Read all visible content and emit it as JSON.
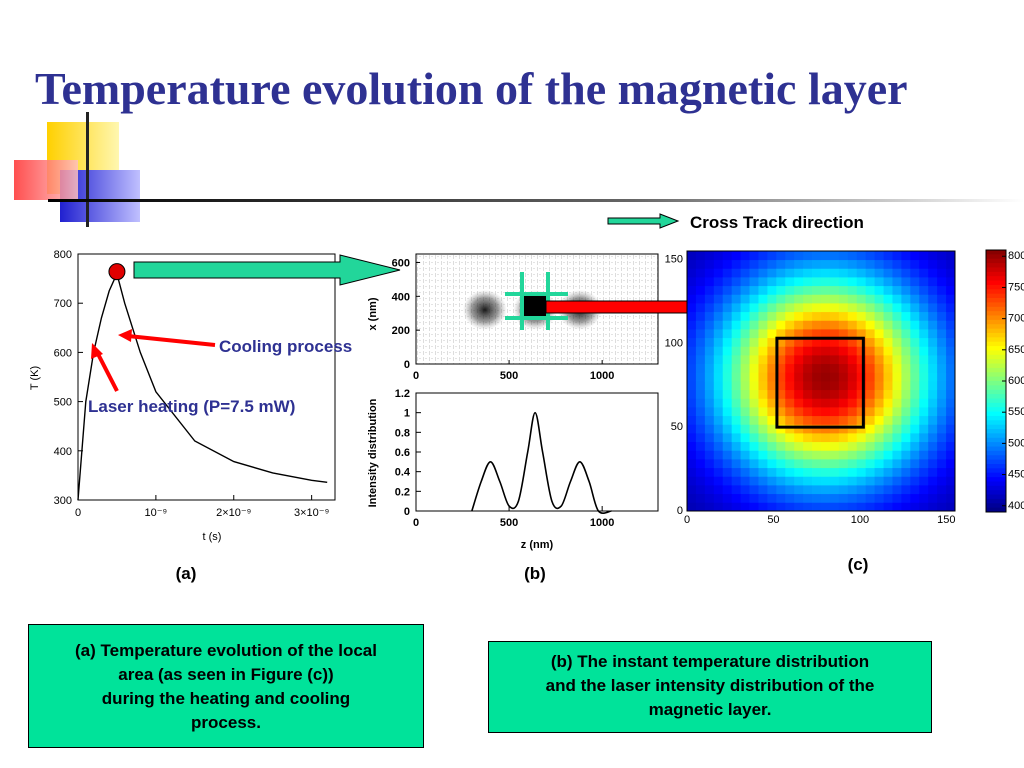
{
  "slide": {
    "title": "Temperature evolution of the magnetic layer",
    "cross_track_label": "Cross Track direction",
    "annotations": {
      "cooling": "Cooling process",
      "heating": "Laser heating (P=7.5 mW)"
    },
    "captions": {
      "a": "(a)",
      "b": "(b)",
      "c": "(c)"
    },
    "box_a": [
      "(a) Temperature evolution of the local",
      "area (as seen in Figure (c))",
      "during the heating and cooling",
      "process."
    ],
    "box_b": [
      "(b) The instant temperature distribution",
      "and the laser intensity distribution of the",
      "magnetic layer."
    ]
  },
  "colors": {
    "title": "#2e3192",
    "annotation": "#2e3192",
    "box_fill": "#00e39a",
    "arrow_green": "#22d69a",
    "arrow_red": "#ff0000"
  },
  "chart_data": [
    {
      "type": "line",
      "panel": "a",
      "xlabel": "t (s)",
      "ylabel": "T (K)",
      "xticks": [
        "0",
        "10⁻⁹",
        "2×10⁻⁹",
        "3×10⁻⁹"
      ],
      "yticks": [
        "300",
        "400",
        "500",
        "600",
        "700",
        "800"
      ],
      "xlim": [
        0,
        3.3e-09
      ],
      "ylim": [
        300,
        800
      ],
      "peak": {
        "t": 5e-10,
        "T": 760
      },
      "x": [
        0,
        1e-10,
        2e-10,
        3e-10,
        4e-10,
        5e-10,
        6e-10,
        8e-10,
        1e-09,
        1.5e-09,
        2e-09,
        2.5e-09,
        3e-09,
        3.2e-09
      ],
      "y": [
        300,
        500,
        600,
        670,
        725,
        760,
        700,
        600,
        520,
        420,
        378,
        355,
        340,
        336
      ]
    },
    {
      "type": "line",
      "panel": "b",
      "xlabel": "z (nm)",
      "ylabel": "Intensity distribution",
      "xticks": [
        "0",
        "500",
        "1000"
      ],
      "yticks": [
        "0",
        "0.2",
        "0.4",
        "0.6",
        "0.8",
        "1",
        "1.2"
      ],
      "xlim": [
        0,
        1300
      ],
      "ylim": [
        0,
        1.2
      ],
      "x": [
        300,
        350,
        400,
        450,
        500,
        550,
        600,
        640,
        680,
        730,
        780,
        830,
        880,
        930,
        980,
        1050
      ],
      "y": [
        0,
        0.3,
        0.5,
        0.3,
        0.05,
        0.1,
        0.6,
        1.0,
        0.6,
        0.1,
        0.05,
        0.3,
        0.5,
        0.3,
        0,
        0
      ]
    },
    {
      "type": "heatmap",
      "panel": "b-top",
      "ylabel": "x (nm)",
      "xticks": [
        "0",
        "500",
        "1000"
      ],
      "yticks": [
        "0",
        "200",
        "400",
        "600"
      ],
      "xlim": [
        0,
        1300
      ],
      "ylim": [
        0,
        650
      ],
      "spots_z": [
        370,
        640,
        880
      ],
      "spot_x": 320
    },
    {
      "type": "heatmap",
      "panel": "c",
      "xticks": [
        "0",
        "50",
        "100",
        "150"
      ],
      "yticks": [
        "0",
        "50",
        "100",
        "150"
      ],
      "xlim": [
        0,
        155
      ],
      "ylim": [
        0,
        155
      ],
      "center": [
        80,
        80
      ],
      "peak_value": 800,
      "min_value": 400,
      "colorbar_ticks": [
        "800",
        "750",
        "700",
        "650",
        "600",
        "550",
        "500",
        "450",
        "400"
      ],
      "colorbar_range": [
        390,
        810
      ]
    }
  ]
}
